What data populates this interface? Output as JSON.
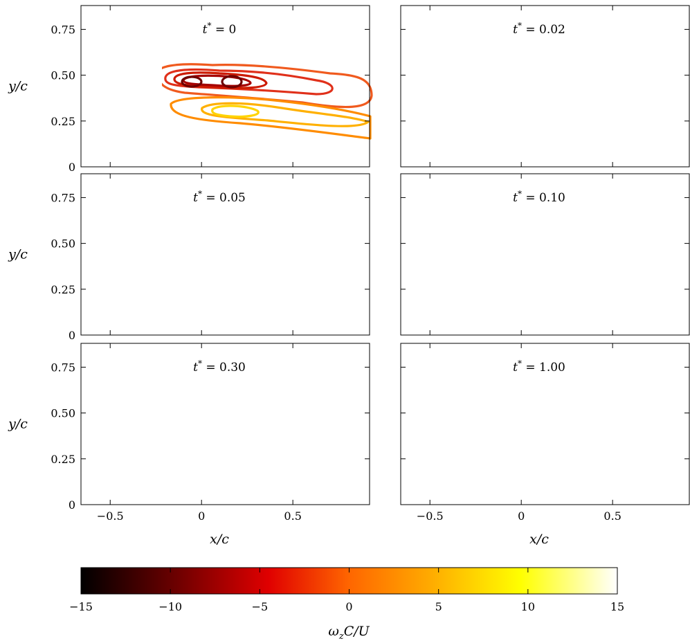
{
  "chart_data": {
    "type": "contour",
    "panels": [
      {
        "label_var": "t",
        "label_sup": "*",
        "label_eq": " = 0"
      },
      {
        "label_var": "t",
        "label_sup": "*",
        "label_eq": " = 0.02"
      },
      {
        "label_var": "t",
        "label_sup": "*",
        "label_eq": " = 0.05"
      },
      {
        "label_var": "t",
        "label_sup": "*",
        "label_eq": " = 0.10"
      },
      {
        "label_var": "t",
        "label_sup": "*",
        "label_eq": " = 0.30"
      },
      {
        "label_var": "t",
        "label_sup": "*",
        "label_eq": " = 1.00"
      }
    ],
    "xlabel": "x/c",
    "ylabel": "y/c",
    "xlim": [
      -0.66,
      0.92
    ],
    "ylim": [
      0,
      0.88
    ],
    "xticks": [
      -0.5,
      0,
      0.5
    ],
    "xtick_labels": [
      "−0.5",
      "0",
      "0.5"
    ],
    "yticks": [
      0,
      0.25,
      0.5,
      0.75
    ],
    "ytick_labels": [
      "0",
      "0.25",
      "0.50",
      "0.75"
    ],
    "colorbar": {
      "label": "ωzC/U",
      "range": [
        -15,
        15
      ],
      "ticks": [
        -15,
        -10,
        -5,
        0,
        5,
        10,
        15
      ],
      "tick_labels": [
        "−15",
        "−10",
        "−5",
        "0",
        "5",
        "10",
        "15"
      ],
      "colormap": "hot"
    }
  }
}
